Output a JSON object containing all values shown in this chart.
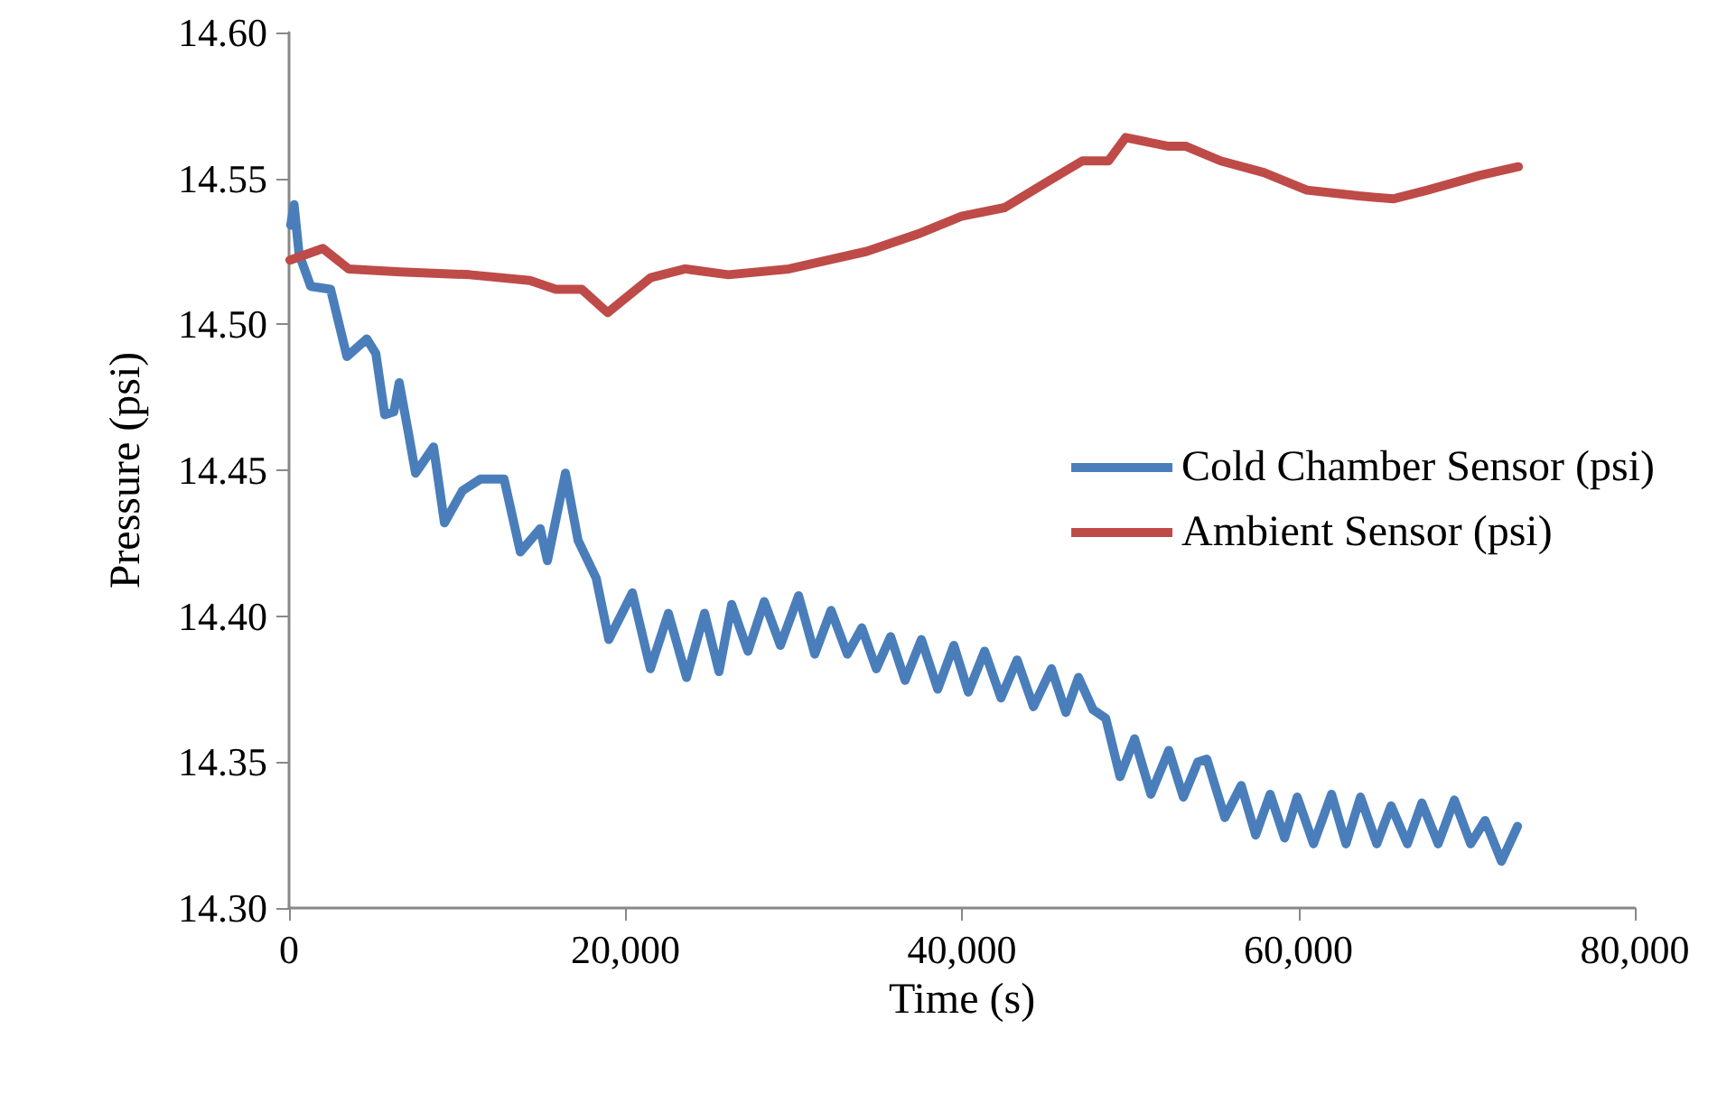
{
  "chart_data": {
    "type": "line",
    "xlabel": "Time (s)",
    "ylabel": "Pressure (psi)",
    "xlim": [
      0,
      80000
    ],
    "xticks": [
      0,
      {
        "value": 20000,
        "label": "20,000"
      },
      {
        "value": 40000,
        "label": "40,000"
      },
      {
        "value": 60000,
        "label": "60,000"
      },
      {
        "value": 80000,
        "label": "80,000"
      }
    ],
    "ylim": [
      14.3,
      14.6
    ],
    "yticks": [
      {
        "value": 14.3,
        "label": "14.30"
      },
      {
        "value": 14.35,
        "label": "14.35"
      },
      {
        "value": 14.4,
        "label": "14.40"
      },
      {
        "value": 14.45,
        "label": "14.45"
      },
      {
        "value": 14.5,
        "label": "14.50"
      },
      {
        "value": 14.55,
        "label": "14.55"
      },
      {
        "value": 14.6,
        "label": "14.60"
      }
    ],
    "grid": false,
    "legend": "right",
    "marker": "none",
    "line_style": "solid",
    "series": [
      {
        "name": "Cold Chamber Sensor (psi)",
        "color": "#4a7ebb",
        "x": [
          100,
          300,
          600,
          1290,
          2470,
          3440,
          4620,
          5160,
          5690,
          6230,
          6550,
          7090,
          7520,
          8590,
          9240,
          10310,
          11380,
          12780,
          13750,
          14930,
          15360,
          16430,
          17180,
          18260,
          19010,
          20410,
          21480,
          22550,
          23630,
          24700,
          25560,
          26310,
          27280,
          28250,
          29210,
          30290,
          31250,
          32220,
          33190,
          34050,
          34910,
          35760,
          36620,
          37590,
          38560,
          39520,
          40380,
          41350,
          42320,
          43280,
          44250,
          45320,
          46180,
          46930,
          47790,
          48550,
          49400,
          50260,
          51230,
          52300,
          53160,
          54020,
          54560,
          55630,
          56600,
          57460,
          58320,
          59180,
          59930,
          60900,
          61970,
          62830,
          63690,
          64660,
          65510,
          66480,
          67340,
          68310,
          69270,
          70240,
          71100,
          72070,
          73030
        ],
        "values": [
          14.534,
          14.541,
          14.524,
          14.513,
          14.512,
          14.489,
          14.495,
          14.49,
          14.469,
          14.47,
          14.48,
          14.463,
          14.449,
          14.458,
          14.432,
          14.443,
          14.447,
          14.447,
          14.422,
          14.43,
          14.419,
          14.449,
          14.426,
          14.413,
          14.392,
          14.408,
          14.382,
          14.401,
          14.379,
          14.401,
          14.381,
          14.404,
          14.388,
          14.405,
          14.39,
          14.407,
          14.387,
          14.402,
          14.387,
          14.396,
          14.382,
          14.393,
          14.378,
          14.392,
          14.375,
          14.39,
          14.374,
          14.388,
          14.372,
          14.385,
          14.369,
          14.382,
          14.367,
          14.379,
          14.368,
          14.365,
          14.345,
          14.358,
          14.339,
          14.354,
          14.338,
          14.35,
          14.351,
          14.331,
          14.342,
          14.325,
          14.339,
          14.324,
          14.338,
          14.322,
          14.339,
          14.322,
          14.338,
          14.322,
          14.335,
          14.322,
          14.336,
          14.322,
          14.337,
          14.322,
          14.33,
          14.316,
          14.328
        ]
      },
      {
        "name": "Ambient Sensor (psi)",
        "color": "#be4b48",
        "x": [
          50,
          2010,
          3540,
          6630,
          10730,
          14320,
          15860,
          17400,
          18940,
          21500,
          23550,
          26120,
          29720,
          34340,
          37410,
          39970,
          42540,
          45110,
          47160,
          48710,
          49730,
          52290,
          53320,
          55380,
          57940,
          60500,
          63580,
          65630,
          67680,
          70770,
          73080
        ],
        "values": [
          14.522,
          14.526,
          14.519,
          14.518,
          14.517,
          14.515,
          14.512,
          14.512,
          14.504,
          14.516,
          14.519,
          14.517,
          14.519,
          14.525,
          14.531,
          14.537,
          14.54,
          14.549,
          14.556,
          14.556,
          14.564,
          14.561,
          14.561,
          14.556,
          14.552,
          14.546,
          14.544,
          14.543,
          14.546,
          14.551,
          14.554
        ]
      }
    ]
  }
}
